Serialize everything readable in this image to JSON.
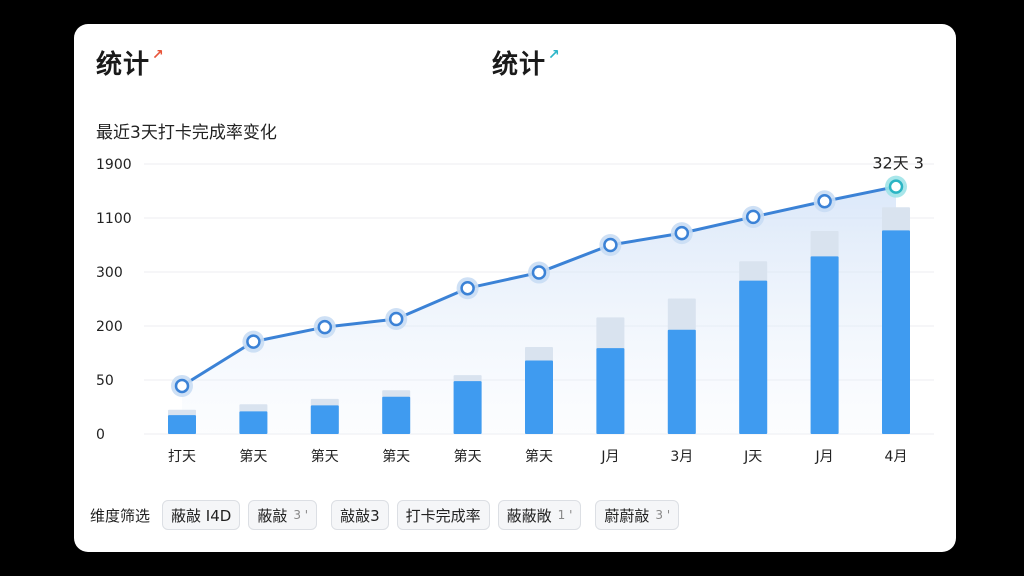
{
  "tabs": [
    {
      "label": "统计",
      "arrow": "↗"
    },
    {
      "label": "统计",
      "arrow": "↗"
    }
  ],
  "subtitle": "最近3天打卡完成率变化",
  "filters": {
    "label": "维度筛选",
    "chips": [
      {
        "text": "蔽敲 I4D",
        "suffix": ""
      },
      {
        "text": "蔽敲",
        "suffix": "3 '"
      },
      {
        "text": "敲敲3",
        "suffix": ""
      },
      {
        "text": "打卡完成率",
        "suffix": ""
      },
      {
        "text": "蔽蔽敞",
        "suffix": "1 '"
      },
      {
        "text": "蔚蔚敲",
        "suffix": "3 '"
      }
    ]
  },
  "colors": {
    "bar": "#3f9bf0",
    "bar_ghost": "#d9e3ef",
    "line": "#3b82d6",
    "marker_fill": "#ffffff",
    "marker_halo": "#c9ddf4",
    "last_marker_halo": "#9fe3e8"
  },
  "chart_data": {
    "type": "bar",
    "title": "最近3天打卡完成率变化",
    "categories": [
      "打天",
      "第天",
      "第天",
      "第天",
      "第天",
      "第天",
      "J月",
      "3月",
      "J天",
      "J月",
      "4月"
    ],
    "y_tick_labels": [
      "0",
      "50",
      "200",
      "300",
      "1100",
      "1900"
    ],
    "series": [
      {
        "values": [
          0.35,
          0.42,
          0.53,
          0.69,
          0.98,
          1.36,
          1.59,
          1.93,
          2.84,
          3.29,
          3.77
        ]
      },
      {
        "values": [
          0.45,
          0.55,
          0.65,
          0.81,
          1.09,
          1.61,
          2.16,
          2.51,
          3.2,
          3.76,
          4.2
        ]
      },
      {
        "values": [
          0.89,
          1.71,
          1.98,
          2.13,
          2.7,
          2.99,
          3.5,
          3.72,
          4.02,
          4.31,
          4.58
        ]
      }
    ],
    "end_label": "32天 3",
    "grid": true
  }
}
